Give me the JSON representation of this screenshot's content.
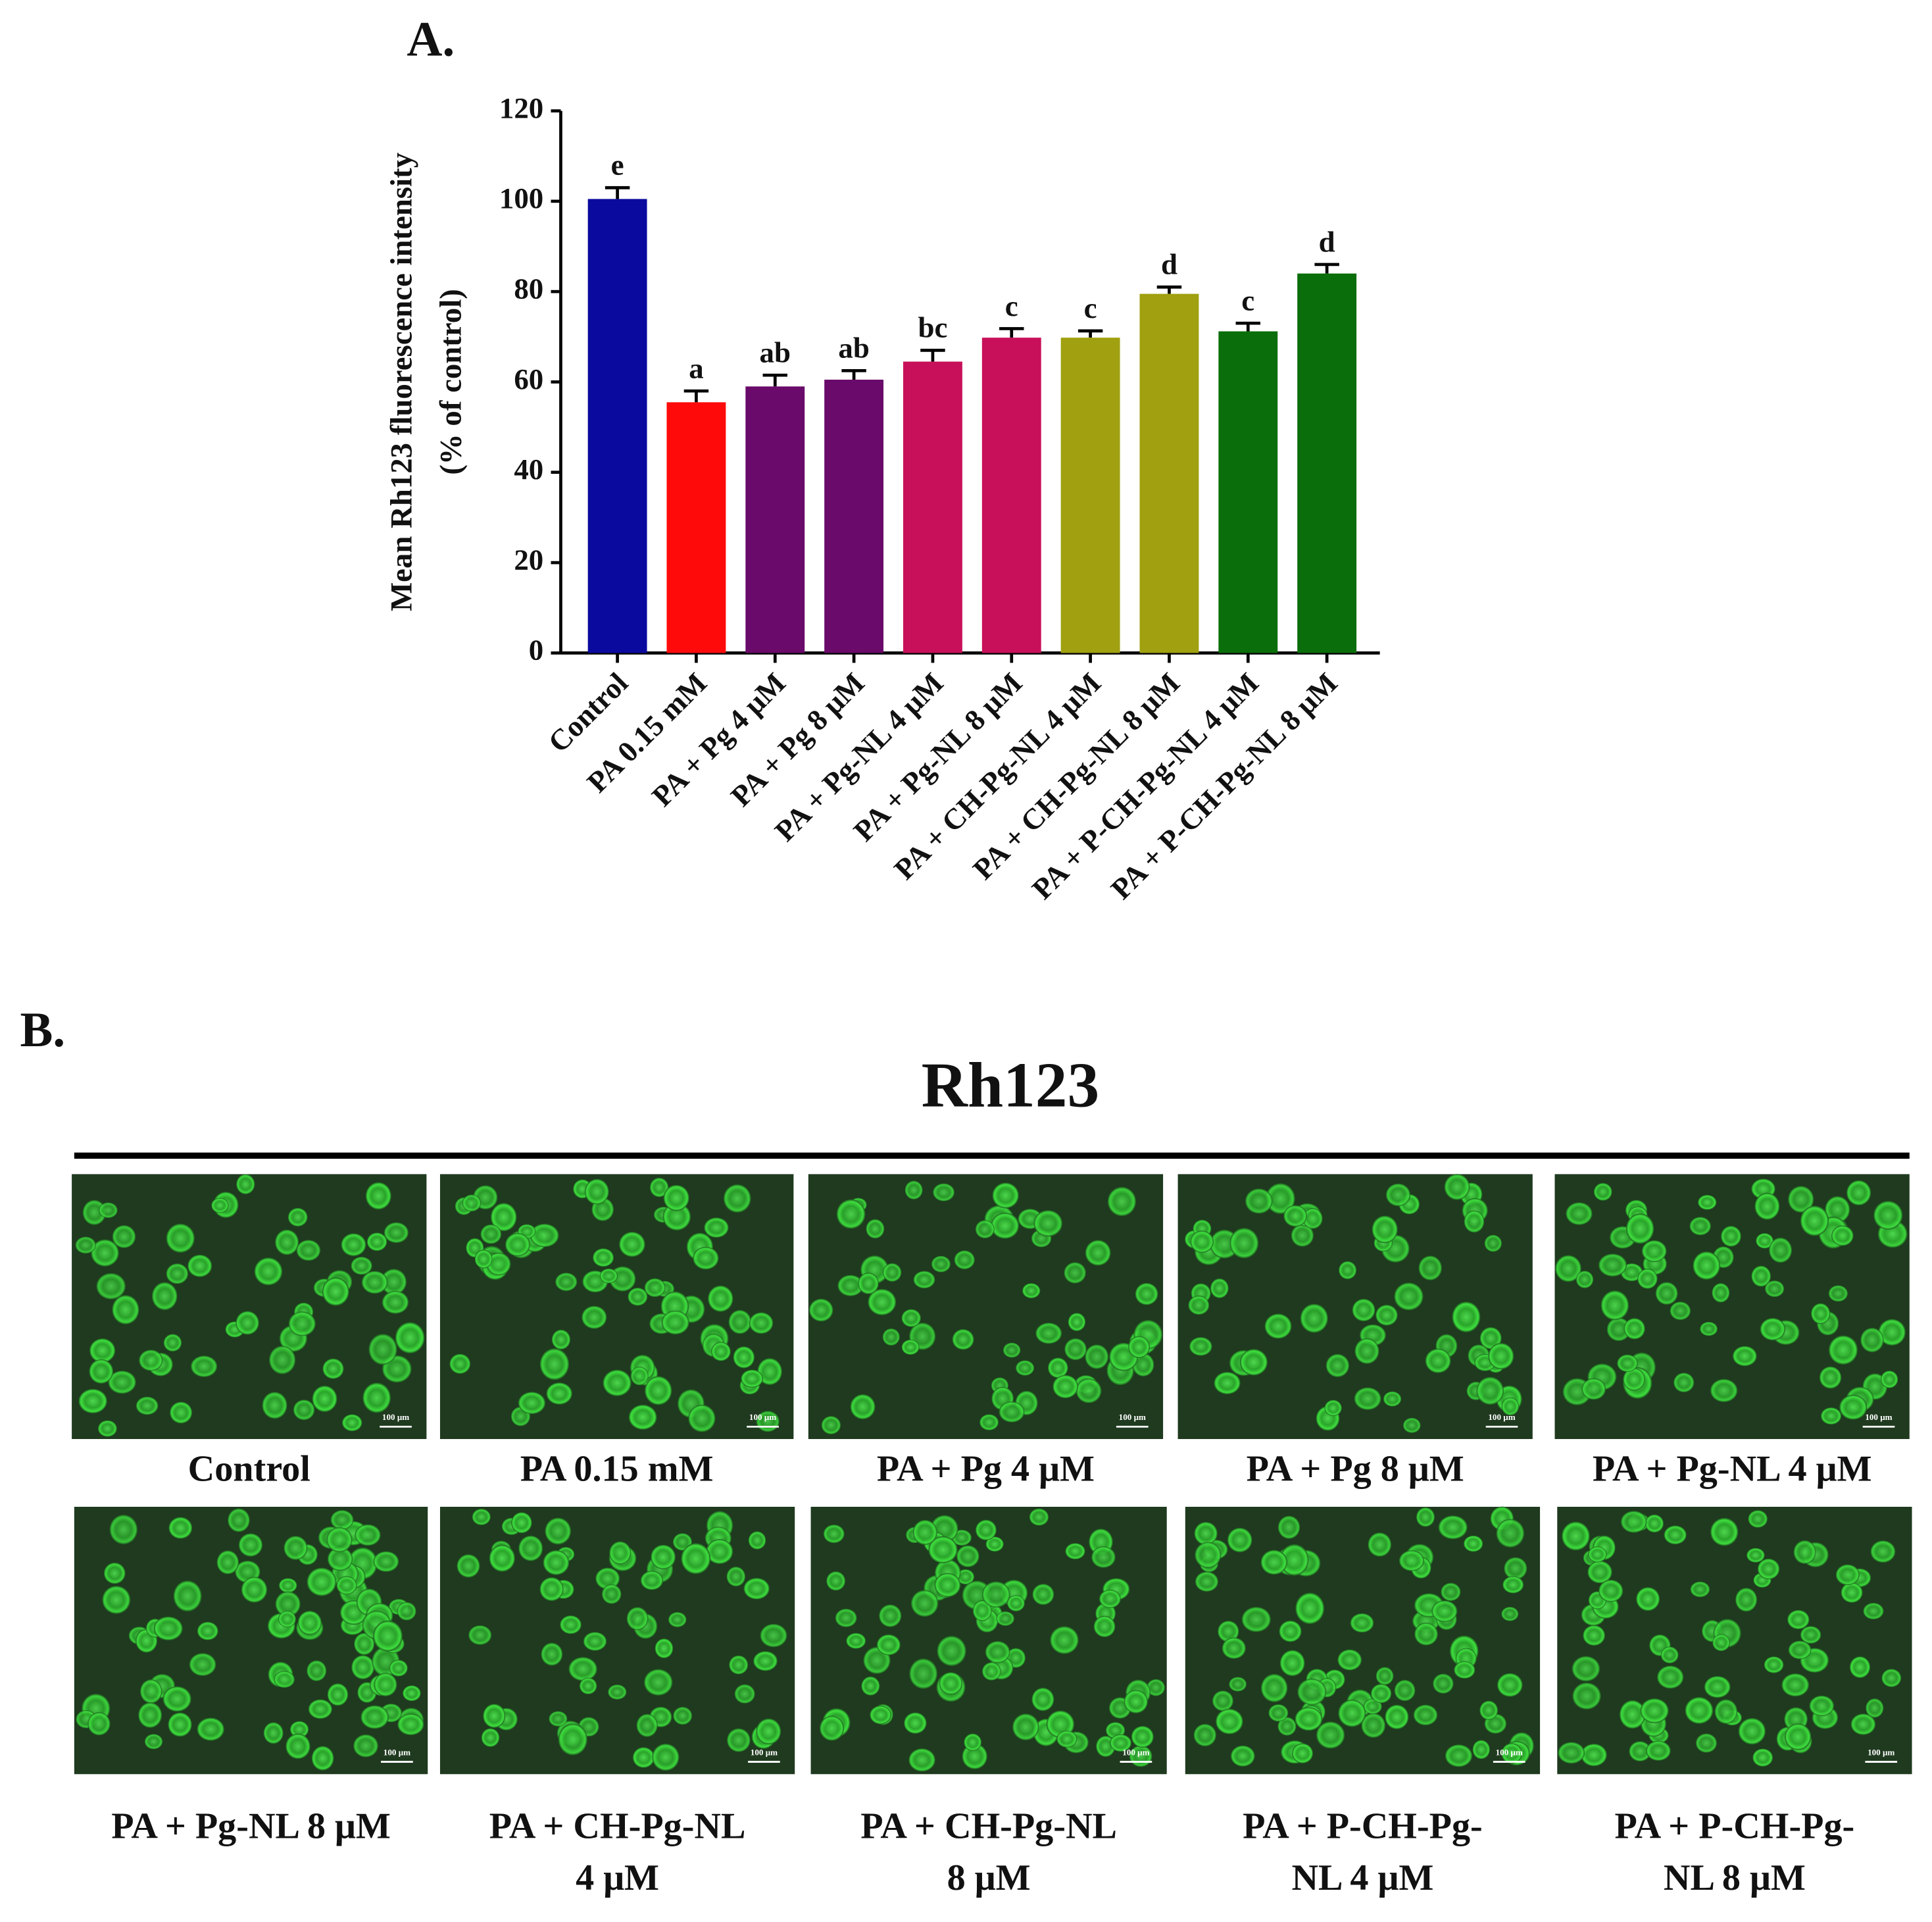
{
  "chart_data": {
    "type": "bar",
    "panel_label": "A.",
    "y_label": [
      "Mean Rh123 fluorescence intensity",
      "(% of control)"
    ],
    "categories": [
      "Control",
      "PA 0.15 mM",
      "PA + Pg 4 μM",
      "PA + Pg 8 μM",
      "PA + Pg-NL 4 μM",
      "PA + Pg-NL 8 μM",
      "PA + CH-Pg-NL 4 μM",
      "PA + CH-Pg-NL 8 μM",
      "PA + P-CH-Pg-NL 4 μM",
      "PA + P-CH-Pg-NL 8 μM"
    ],
    "values": [
      100.5,
      55.5,
      59,
      60.5,
      64.5,
      69.8,
      69.8,
      79.5,
      71.2,
      84
    ],
    "errors": [
      2.5,
      2.5,
      2.5,
      2,
      2.5,
      2,
      1.5,
      1.5,
      1.8,
      2
    ],
    "significance_letters": [
      "e",
      "a",
      "ab",
      "ab",
      "bc",
      "c",
      "c",
      "d",
      "c",
      "d"
    ],
    "colors": [
      "#0a0a9e",
      "#ff0a0a",
      "#6a0a6a",
      "#6a0a6a",
      "#c8105a",
      "#c8105a",
      "#a0a010",
      "#a0a010",
      "#0a6e0a",
      "#0a6e0a"
    ],
    "ylim": [
      0,
      120
    ],
    "yticks": [
      0,
      20,
      40,
      60,
      80,
      100,
      120
    ]
  },
  "panel_b": {
    "panel_label": "B.",
    "title": "Rh123",
    "scale_bar": "100 μm",
    "images": [
      {
        "label": [
          "Control"
        ]
      },
      {
        "label": [
          "PA 0.15 mM"
        ]
      },
      {
        "label": [
          "PA + Pg 4 μM"
        ]
      },
      {
        "label": [
          "PA + Pg 8 μM"
        ]
      },
      {
        "label": [
          "PA + Pg-NL 4 μM"
        ]
      },
      {
        "label": [
          "PA + Pg-NL 8 μM"
        ]
      },
      {
        "label": [
          "PA + CH-Pg-NL",
          "4 μM"
        ]
      },
      {
        "label": [
          "PA + CH-Pg-NL",
          "8 μM"
        ]
      },
      {
        "label": [
          "PA + P-CH-Pg-",
          "NL 4 μM"
        ]
      },
      {
        "label": [
          "PA + P-CH-Pg-",
          "NL 8 μM"
        ]
      }
    ]
  }
}
